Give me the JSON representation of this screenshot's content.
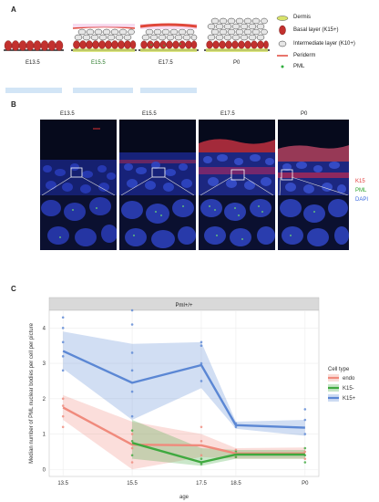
{
  "panel_a": {
    "letter": "A",
    "stages": [
      "E13.5",
      "E15.5",
      "E17.5",
      "P0"
    ],
    "legend": [
      {
        "label": "Dermis",
        "icon": "dermis-icon"
      },
      {
        "label": "Basal layer (K15+)",
        "icon": "basal-cell-icon"
      },
      {
        "label": "Intermediate layer (K10+)",
        "icon": "intermediate-cell-icon"
      },
      {
        "label": "Periderm",
        "icon": "periderm-icon"
      },
      {
        "label": "PML",
        "icon": "pml-dot-icon"
      }
    ]
  },
  "panel_b": {
    "letter": "B",
    "stages": [
      "E13.5",
      "E15.5",
      "E17.5",
      "P0"
    ],
    "channels": [
      "K15",
      "PML",
      "DAPI"
    ],
    "colors": {
      "k15": "#e23b3b",
      "pml": "#2aa12a",
      "dapi": "#3a6ae0"
    }
  },
  "panel_c": {
    "letter": "C",
    "facet_label": "Pml+/+",
    "legend_title": "Cell type"
  },
  "chart_data": {
    "type": "line",
    "xlabel": "age",
    "ylabel": "Median number of PML nuclear bodies per cell per picture",
    "categories": [
      "13.5",
      "15.5",
      "17.5",
      "18.5",
      "P0"
    ],
    "x": [
      13.5,
      15.5,
      17.5,
      18.5,
      20.5
    ],
    "ylim": [
      -0.2,
      4.5
    ],
    "yticks": [
      0,
      1,
      2,
      3,
      4
    ],
    "grid": true,
    "legend_position": "right",
    "series": [
      {
        "name": "endo",
        "color": "#f08a7c",
        "x": [
          13.5,
          15.5,
          17.5,
          18.5,
          20.5
        ],
        "mean": [
          1.75,
          0.7,
          0.68,
          0.45,
          0.45
        ],
        "lower": [
          1.4,
          0.0,
          0.35,
          0.3,
          0.3
        ],
        "upper": [
          2.1,
          1.35,
          1.0,
          0.6,
          0.62
        ],
        "points": [
          [
            13.5,
            1.2
          ],
          [
            13.5,
            1.5
          ],
          [
            13.5,
            1.8
          ],
          [
            13.5,
            2.0
          ],
          [
            15.5,
            0.2
          ],
          [
            15.5,
            0.6
          ],
          [
            15.5,
            1.0
          ],
          [
            17.5,
            0.4
          ],
          [
            17.5,
            0.8
          ],
          [
            17.5,
            1.2
          ],
          [
            18.5,
            0.35
          ],
          [
            18.5,
            0.55
          ],
          [
            20.5,
            0.3
          ],
          [
            20.5,
            0.5
          ]
        ]
      },
      {
        "name": "K15-",
        "color": "#3fa93f",
        "x": [
          15.5,
          17.5,
          18.5,
          20.5
        ],
        "mean": [
          0.75,
          0.2,
          0.42,
          0.42
        ],
        "lower": [
          0.3,
          0.1,
          0.3,
          0.3
        ],
        "upper": [
          1.4,
          0.6,
          0.55,
          0.55
        ],
        "points": [
          [
            15.5,
            0.4
          ],
          [
            15.5,
            0.8
          ],
          [
            15.5,
            1.1
          ],
          [
            17.5,
            0.15
          ],
          [
            17.5,
            0.3
          ],
          [
            18.5,
            0.35
          ],
          [
            18.5,
            0.5
          ],
          [
            20.5,
            0.2
          ],
          [
            20.5,
            0.4
          ],
          [
            20.5,
            0.6
          ]
        ]
      },
      {
        "name": "K15+",
        "color": "#5b87d4",
        "x": [
          13.5,
          15.5,
          17.5,
          18.5,
          20.5
        ],
        "mean": [
          3.35,
          2.45,
          2.95,
          1.25,
          1.18
        ],
        "lower": [
          2.85,
          1.4,
          2.3,
          1.15,
          0.95
        ],
        "upper": [
          3.9,
          3.55,
          3.6,
          1.35,
          1.4
        ],
        "points": [
          [
            13.5,
            2.8
          ],
          [
            13.5,
            3.2
          ],
          [
            13.5,
            3.6
          ],
          [
            13.5,
            4.0
          ],
          [
            13.5,
            4.3
          ],
          [
            15.5,
            1.5
          ],
          [
            15.5,
            2.2
          ],
          [
            15.5,
            2.8
          ],
          [
            15.5,
            3.3
          ],
          [
            15.5,
            4.1
          ],
          [
            15.5,
            4.5
          ],
          [
            17.5,
            2.5
          ],
          [
            17.5,
            3.0
          ],
          [
            17.5,
            3.5
          ],
          [
            17.5,
            3.6
          ],
          [
            18.5,
            1.2
          ],
          [
            18.5,
            1.3
          ],
          [
            20.5,
            1.0
          ],
          [
            20.5,
            1.4
          ],
          [
            20.5,
            1.7
          ]
        ]
      }
    ]
  }
}
